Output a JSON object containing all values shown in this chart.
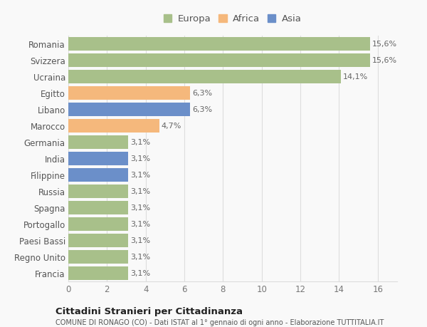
{
  "categories": [
    "Francia",
    "Regno Unito",
    "Paesi Bassi",
    "Portogallo",
    "Spagna",
    "Russia",
    "Filippine",
    "India",
    "Germania",
    "Marocco",
    "Libano",
    "Egitto",
    "Ucraina",
    "Svizzera",
    "Romania"
  ],
  "values": [
    3.1,
    3.1,
    3.1,
    3.1,
    3.1,
    3.1,
    3.1,
    3.1,
    3.1,
    4.7,
    6.3,
    6.3,
    14.1,
    15.6,
    15.6
  ],
  "colors": [
    "#a8c08a",
    "#a8c08a",
    "#a8c08a",
    "#a8c08a",
    "#a8c08a",
    "#a8c08a",
    "#6b8fc9",
    "#6b8fc9",
    "#a8c08a",
    "#f5b87c",
    "#6b8fc9",
    "#f5b87c",
    "#a8c08a",
    "#a8c08a",
    "#a8c08a"
  ],
  "labels": [
    "3,1%",
    "3,1%",
    "3,1%",
    "3,1%",
    "3,1%",
    "3,1%",
    "3,1%",
    "3,1%",
    "3,1%",
    "4,7%",
    "6,3%",
    "6,3%",
    "14,1%",
    "15,6%",
    "15,6%"
  ],
  "legend": [
    {
      "label": "Europa",
      "color": "#a8c08a"
    },
    {
      "label": "Africa",
      "color": "#f5b87c"
    },
    {
      "label": "Asia",
      "color": "#6b8fc9"
    }
  ],
  "xlim": [
    0,
    17
  ],
  "xticks": [
    0,
    2,
    4,
    6,
    8,
    10,
    12,
    14,
    16
  ],
  "title": "Cittadini Stranieri per Cittadinanza",
  "subtitle": "COMUNE DI RONAGO (CO) - Dati ISTAT al 1° gennaio di ogni anno - Elaborazione TUTTITALIA.IT",
  "background_color": "#f9f9f9",
  "grid_color": "#dddddd",
  "bar_height": 0.82,
  "label_fontsize": 8,
  "tick_fontsize": 8.5
}
